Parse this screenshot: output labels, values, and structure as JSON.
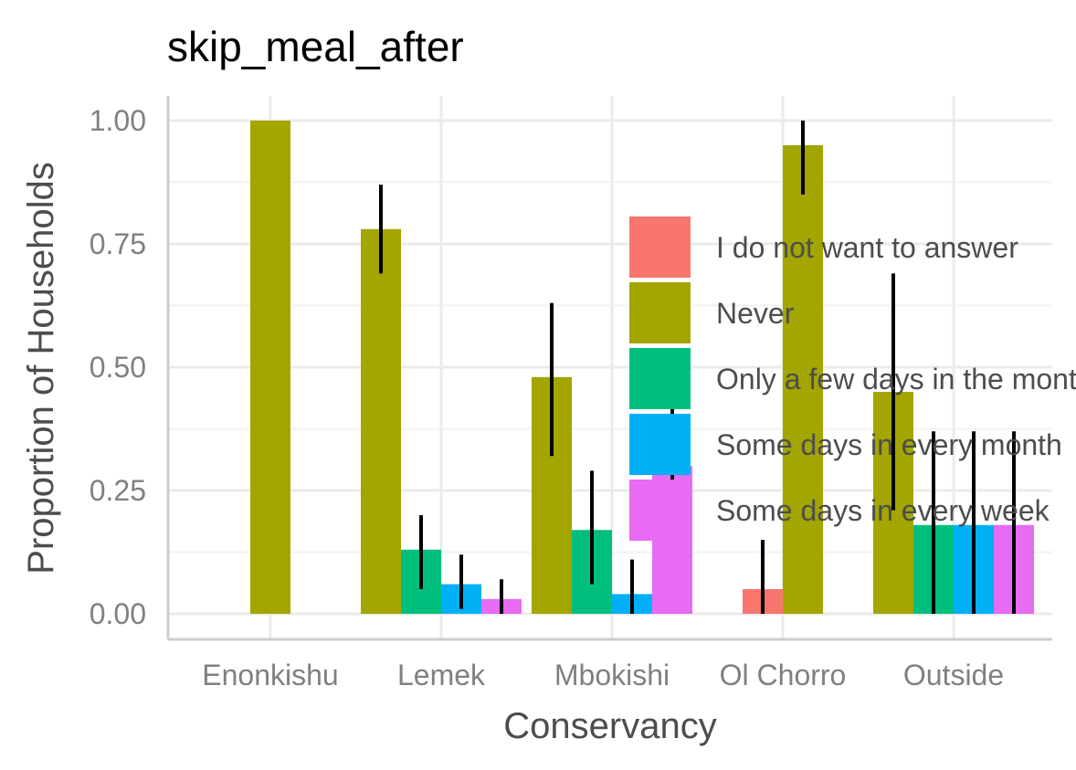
{
  "chart_data": {
    "type": "bar",
    "title": "skip_meal_after",
    "xlabel": "Conservancy",
    "ylabel": "Proportion of Households",
    "ylim": [
      -0.05,
      1.05
    ],
    "yticks": [
      "0.00",
      "0.25",
      "0.50",
      "0.75",
      "1.00"
    ],
    "categories": [
      "Enonkishu",
      "Lemek",
      "Mbokishi",
      "Ol Chorro",
      "Outside"
    ],
    "grid": true,
    "legend_position": "right",
    "series": [
      {
        "name": "I do not want to answer",
        "color": "#F8766D",
        "values": [
          null,
          null,
          null,
          0.05,
          null
        ],
        "error_low": [
          null,
          null,
          null,
          0.0,
          null
        ],
        "error_high": [
          null,
          null,
          null,
          0.15,
          null
        ]
      },
      {
        "name": "Never",
        "color": "#A3A500",
        "values": [
          1.0,
          0.78,
          0.48,
          0.95,
          0.45
        ],
        "error_low": [
          1.0,
          0.69,
          0.32,
          0.85,
          0.21
        ],
        "error_high": [
          1.0,
          0.87,
          0.63,
          1.0,
          0.69
        ]
      },
      {
        "name": "Only a few days in the month",
        "color": "#00BF7D",
        "values": [
          null,
          0.13,
          0.17,
          null,
          0.18
        ],
        "error_low": [
          null,
          0.05,
          0.06,
          null,
          0.0
        ],
        "error_high": [
          null,
          0.2,
          0.29,
          null,
          0.37
        ]
      },
      {
        "name": "Some days in every month",
        "color": "#00B0F6",
        "values": [
          null,
          0.06,
          0.04,
          null,
          0.18
        ],
        "error_low": [
          null,
          0.01,
          0.0,
          null,
          0.0
        ],
        "error_high": [
          null,
          0.12,
          0.11,
          null,
          0.37
        ]
      },
      {
        "name": "Some days in every week",
        "color": "#E76BF3",
        "values": [
          null,
          0.03,
          0.3,
          null,
          0.18
        ],
        "error_low": [
          null,
          0.0,
          0.27,
          null,
          0.0
        ],
        "error_high": [
          null,
          0.07,
          0.42,
          null,
          0.37
        ]
      }
    ]
  }
}
